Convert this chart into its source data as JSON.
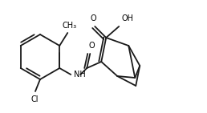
{
  "bg_color": "#ffffff",
  "line_color": "#1a1a1a",
  "line_width": 1.3,
  "text_color": "#000000",
  "font_size": 7.0,
  "figsize": [
    2.58,
    1.41
  ],
  "dpi": 100,
  "xlim": [
    0,
    258
  ],
  "ylim": [
    0,
    141
  ]
}
